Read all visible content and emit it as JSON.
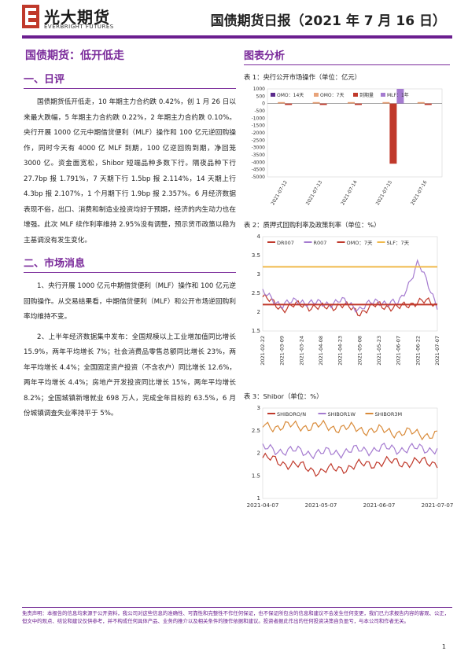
{
  "header": {
    "logo_cn": "光大期货",
    "logo_en": "EVERBRIGHT FUTURES",
    "title": "国债期货日报（2021 年 7 月 16 日）"
  },
  "left": {
    "main_title": "国债期货：低开低走",
    "section1_title": "一、日评",
    "section1_paras": [
      "国债期货低开低走，10 年期主力合约跌 0.42%，创 1 月 26 日以来最大跌幅，5 年期主力合约跌 0.22%，2 年期主力合约跌 0.10%。央行开展 1000 亿元中期借贷便利（MLF）操作和 100 亿元逆回购操作，同时今天有 4000 亿 MLF 到期，100 亿逆回购到期，净回笼 3000 亿。资金面宽松，Shibor 短端品种多数下行。隔夜品种下行 27.7bp 报 1.791%，7 天期下行 1.5bp 报 2.114%，14 天期上行 4.3bp 报 2.107%，1 个月期下行 1.9bp 报 2.357%。6 月经济数据表现不俗，出口、消费和制造业投资均好于预期，经济的内生动力也在增强。此次 MLF 续作利率维持 2.95%没有调整，预示货币政策以稳为主基调没有发生变化。"
    ],
    "section2_title": "二、市场消息",
    "section2_paras": [
      "1、央行开展 1000 亿元中期借贷便利（MLF）操作和 100 亿元逆回购操作。从交易结果看，中期借贷便利（MLF）和公开市场逆回购利率均维持不变。",
      "2、上半年经济数据集中发布：全国规模以上工业增加值同比增长 15.9%，两年平均增长 7%；社会消费品零售总额同比增长 23%，两年平均增长 4.4%；全国固定资产投资（不含农户）同比增长 12.6%，两年平均增长 4.4%；房地产开发投资同比增长 15%，两年平均增长 8.2%；全国城镇新增就业 698 万人，完成全年目标的 63.5%，6 月份城镇调查失业率持平于 5%。"
    ]
  },
  "right": {
    "heading": "图表分析",
    "captions": [
      "表 1：央行公开市场操作（单位：亿元）",
      "表 2：质押式回购利率及政策利率（单位：%）",
      "表 3：Shibor（单位：%）"
    ]
  },
  "chart_data": [
    {
      "type": "bar",
      "title": "表 1：央行公开市场操作（单位：亿元）",
      "categories": [
        "2021-07-12",
        "2021-07-13",
        "2021-07-14",
        "2021-07-15",
        "2021-07-16"
      ],
      "series": [
        {
          "name": "OMO：14天",
          "color": "#5b2b8c",
          "values": [
            0,
            0,
            0,
            0,
            0
          ]
        },
        {
          "name": "OMO：7天",
          "color": "#e8a37a",
          "values": [
            100,
            100,
            100,
            100,
            100
          ]
        },
        {
          "name": "到期量",
          "color": "#c0392b",
          "values": [
            -100,
            -100,
            -100,
            -4100,
            -100
          ]
        },
        {
          "name": "MLF：1年",
          "color": "#a57bd0",
          "values": [
            0,
            0,
            0,
            1000,
            0
          ]
        }
      ],
      "ylim": [
        -5000,
        1000
      ],
      "yticks": [
        "1000",
        "500",
        "0",
        "-500",
        "-1000",
        "-1500",
        "-2000",
        "-2500",
        "-3000",
        "-3500",
        "-4000",
        "-4500",
        "-5000"
      ]
    },
    {
      "type": "line",
      "title": "表 2：质押式回购利率及政策利率（单位：%）",
      "x": [
        "2021-02-22",
        "2021-03-09",
        "2021-03-24",
        "2021-04-08",
        "2021-04-23",
        "2021-05-08",
        "2021-05-23",
        "2021-06-07",
        "2021-06-22",
        "2021-07-07"
      ],
      "series": [
        {
          "name": "DR007",
          "color": "#c0392b",
          "values": [
            2.4,
            2.1,
            2.2,
            2.1,
            2.2,
            2.0,
            2.2,
            2.1,
            2.3,
            2.2
          ]
        },
        {
          "name": "R007",
          "color": "#a57bd0",
          "values": [
            2.5,
            2.2,
            2.3,
            2.2,
            2.3,
            2.1,
            2.3,
            2.2,
            3.3,
            2.2
          ]
        },
        {
          "name": "OMO：7天",
          "color": "#c0392b",
          "values": [
            2.2,
            2.2,
            2.2,
            2.2,
            2.2,
            2.2,
            2.2,
            2.2,
            2.2,
            2.2
          ]
        },
        {
          "name": "SLF：7天",
          "color": "#f0b94a",
          "values": [
            3.2,
            3.2,
            3.2,
            3.2,
            3.2,
            3.2,
            3.2,
            3.2,
            3.2,
            3.2
          ]
        }
      ],
      "ylim": [
        1.5,
        4
      ],
      "yticks": [
        "4",
        "3.5",
        "3",
        "2.5",
        "2",
        "1.5"
      ]
    },
    {
      "type": "line",
      "title": "表 3：Shibor（单位：%）",
      "x": [
        "2021-04-07",
        "2021-05-07",
        "2021-06-07",
        "2021-07-07"
      ],
      "series": [
        {
          "name": "SHIBORO/N",
          "color": "#c0392b",
          "values": [
            1.9,
            1.6,
            1.8,
            1.8
          ]
        },
        {
          "name": "SHIBOR1W",
          "color": "#a57bd0",
          "values": [
            2.1,
            2.0,
            2.1,
            2.1
          ]
        },
        {
          "name": "SHIBOR3M",
          "color": "#d98b3a",
          "values": [
            2.6,
            2.6,
            2.5,
            2.4
          ]
        }
      ],
      "ylim": [
        1,
        3
      ],
      "yticks": [
        "3",
        "2.5",
        "2",
        "1.5",
        "1"
      ]
    }
  ],
  "footer": {
    "disclaimer": "免责声明：本报告的信息均来源于公开资料，我公司对这些信息的准确性、可靠性和完整性不作任何保证，也不保证所包含的信息和建议不会发生任何变更，我们已力求报告内容的客观、公正，但文中的观点、结论和建议仅供参考，并不构成任何具体产品、业务的推介以及相关条件的操作依据和建议。投资者据此作出的任何投资决策自负盈亏，与本公司和作者无关。",
    "page_no": "1"
  }
}
